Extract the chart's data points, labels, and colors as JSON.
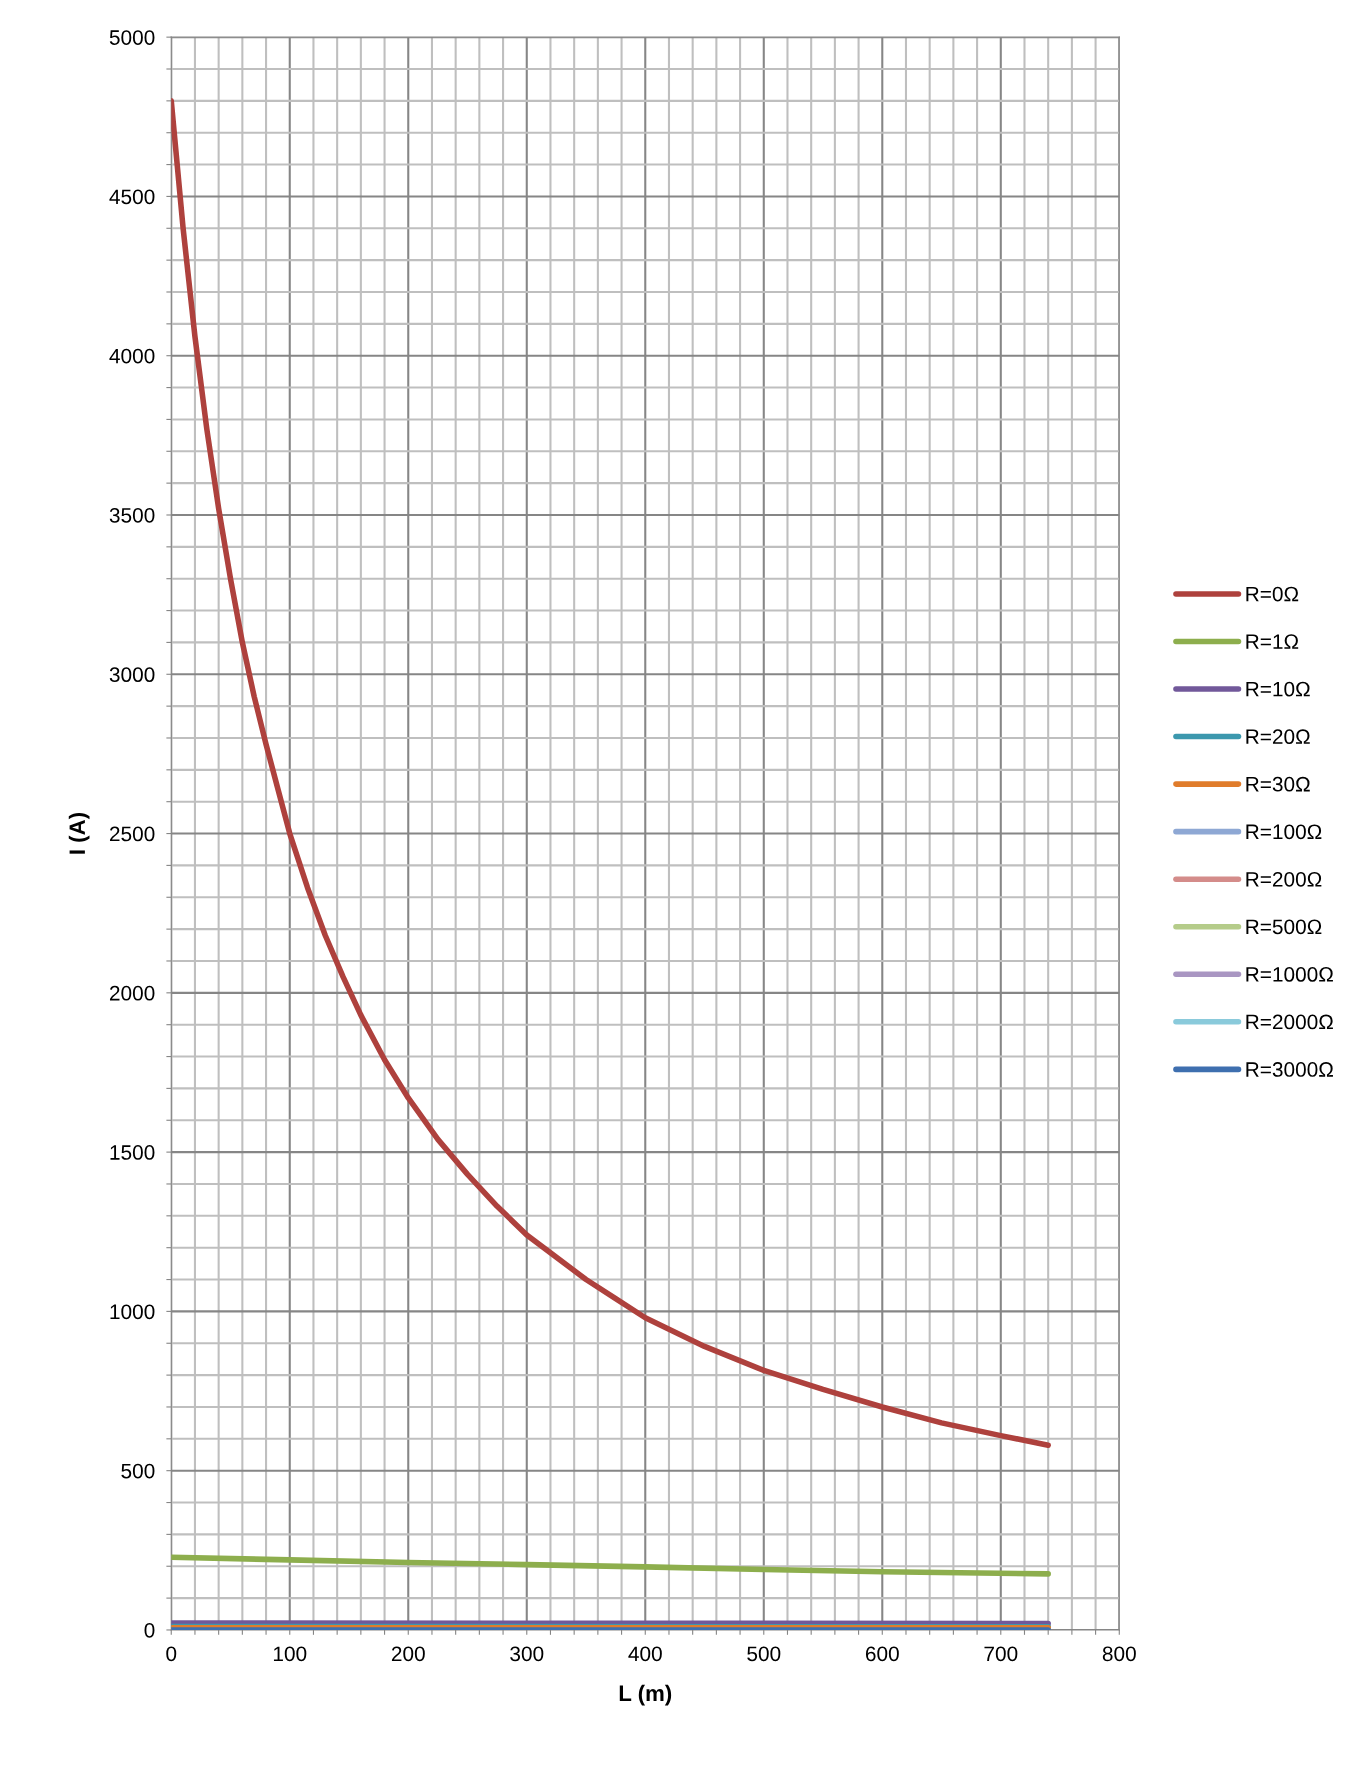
{
  "chart_data": {
    "type": "line",
    "xlabel": "L (m)",
    "ylabel": "I (A)",
    "xlim": [
      0,
      800
    ],
    "ylim": [
      0,
      5000
    ],
    "xticks": [
      0,
      {
        "value": 20,
        "label": null
      },
      {
        "value": 40,
        "label": null
      },
      {
        "value": 60,
        "label": null
      },
      {
        "value": 80,
        "label": null
      },
      100,
      {
        "value": 120,
        "label": null
      },
      {
        "value": 140,
        "label": null
      },
      {
        "value": 160,
        "label": null
      },
      {
        "value": 180,
        "label": null
      },
      200,
      {
        "value": 220,
        "label": null
      },
      {
        "value": 240,
        "label": null
      },
      {
        "value": 260,
        "label": null
      },
      {
        "value": 280,
        "label": null
      },
      300,
      {
        "value": 320,
        "label": null
      },
      {
        "value": 340,
        "label": null
      },
      {
        "value": 360,
        "label": null
      },
      {
        "value": 380,
        "label": null
      },
      400,
      {
        "value": 420,
        "label": null
      },
      {
        "value": 440,
        "label": null
      },
      {
        "value": 460,
        "label": null
      },
      {
        "value": 480,
        "label": null
      },
      500,
      {
        "value": 520,
        "label": null
      },
      {
        "value": 540,
        "label": null
      },
      {
        "value": 560,
        "label": null
      },
      {
        "value": 580,
        "label": null
      },
      600,
      {
        "value": 620,
        "label": null
      },
      {
        "value": 640,
        "label": null
      },
      {
        "value": 660,
        "label": null
      },
      {
        "value": 680,
        "label": null
      },
      700,
      {
        "value": 720,
        "label": null
      },
      {
        "value": 740,
        "label": null
      },
      {
        "value": 760,
        "label": null
      },
      {
        "value": 780,
        "label": null
      },
      800
    ],
    "yticks": [
      0,
      {
        "value": 100,
        "label": null
      },
      {
        "value": 200,
        "label": null
      },
      {
        "value": 300,
        "label": null
      },
      {
        "value": 400,
        "label": null
      },
      500,
      {
        "value": 600,
        "label": null
      },
      {
        "value": 700,
        "label": null
      },
      {
        "value": 800,
        "label": null
      },
      {
        "value": 900,
        "label": null
      },
      1000,
      {
        "value": 1100,
        "label": null
      },
      {
        "value": 1200,
        "label": null
      },
      {
        "value": 1300,
        "label": null
      },
      {
        "value": 1400,
        "label": null
      },
      1500,
      {
        "value": 1600,
        "label": null
      },
      {
        "value": 1700,
        "label": null
      },
      {
        "value": 1800,
        "label": null
      },
      {
        "value": 1900,
        "label": null
      },
      2000,
      {
        "value": 2100,
        "label": null
      },
      {
        "value": 2200,
        "label": null
      },
      {
        "value": 2300,
        "label": null
      },
      {
        "value": 2400,
        "label": null
      },
      2500,
      {
        "value": 2600,
        "label": null
      },
      {
        "value": 2700,
        "label": null
      },
      {
        "value": 2800,
        "label": null
      },
      {
        "value": 2900,
        "label": null
      },
      3000,
      {
        "value": 3100,
        "label": null
      },
      {
        "value": 3200,
        "label": null
      },
      {
        "value": 3300,
        "label": null
      },
      {
        "value": 3400,
        "label": null
      },
      3500,
      {
        "value": 3600,
        "label": null
      },
      {
        "value": 3700,
        "label": null
      },
      {
        "value": 3800,
        "label": null
      },
      {
        "value": 3900,
        "label": null
      },
      4000,
      {
        "value": 4100,
        "label": null
      },
      {
        "value": 4200,
        "label": null
      },
      {
        "value": 4300,
        "label": null
      },
      {
        "value": 4400,
        "label": null
      },
      4500,
      {
        "value": 4600,
        "label": null
      },
      {
        "value": 4700,
        "label": null
      },
      {
        "value": 4800,
        "label": null
      },
      {
        "value": 4900,
        "label": null
      },
      5000
    ],
    "grid": true,
    "legend": "right",
    "marker": "none",
    "line_style": "solid",
    "series": [
      {
        "name": "R=0Ω",
        "color": "#ae413d",
        "x": [
          0,
          10,
          20,
          30,
          40,
          50,
          60,
          70,
          80,
          90,
          100,
          115,
          130,
          145,
          160,
          180,
          200,
          225,
          250,
          275,
          300,
          325,
          350,
          375,
          400,
          450,
          500,
          550,
          600,
          650,
          700,
          740
        ],
        "values": [
          4800,
          4400,
          4060,
          3770,
          3520,
          3300,
          3100,
          2930,
          2780,
          2640,
          2500,
          2330,
          2180,
          2050,
          1930,
          1790,
          1670,
          1540,
          1430,
          1330,
          1240,
          1170,
          1100,
          1040,
          980,
          890,
          815,
          755,
          700,
          650,
          610,
          580
        ]
      },
      {
        "name": "R=1Ω",
        "color": "#8dae4d",
        "x": [
          0,
          100,
          200,
          300,
          400,
          500,
          600,
          740
        ],
        "values": [
          228,
          220,
          212,
          205,
          198,
          190,
          183,
          176
        ]
      },
      {
        "name": "R=10Ω",
        "color": "#71589a",
        "x": [
          0,
          740
        ],
        "values": [
          22,
          20
        ]
      },
      {
        "name": "R=20Ω",
        "color": "#3c98ae",
        "x": [
          0,
          740
        ],
        "values": [
          11,
          10
        ]
      },
      {
        "name": "R=30Ω",
        "color": "#e07c2b",
        "x": [
          0,
          740
        ],
        "values": [
          7,
          7
        ]
      },
      {
        "name": "R=100Ω",
        "color": "#8ea8d4",
        "values": [
          null,
          null
        ]
      },
      {
        "name": "R=200Ω",
        "color": "#d48c8a",
        "values": [
          null,
          null
        ]
      },
      {
        "name": "R=500Ω",
        "color": "#b5cc8a",
        "values": [
          null,
          null
        ]
      },
      {
        "name": "R=1000Ω",
        "color": "#a996c2",
        "values": [
          null,
          null
        ]
      },
      {
        "name": "R=2000Ω",
        "color": "#8acadb",
        "values": [
          null,
          null
        ]
      },
      {
        "name": "R=3000Ω",
        "color": "#3e6faf",
        "x": [
          0,
          740
        ],
        "values": [
          0,
          0
        ]
      }
    ]
  }
}
